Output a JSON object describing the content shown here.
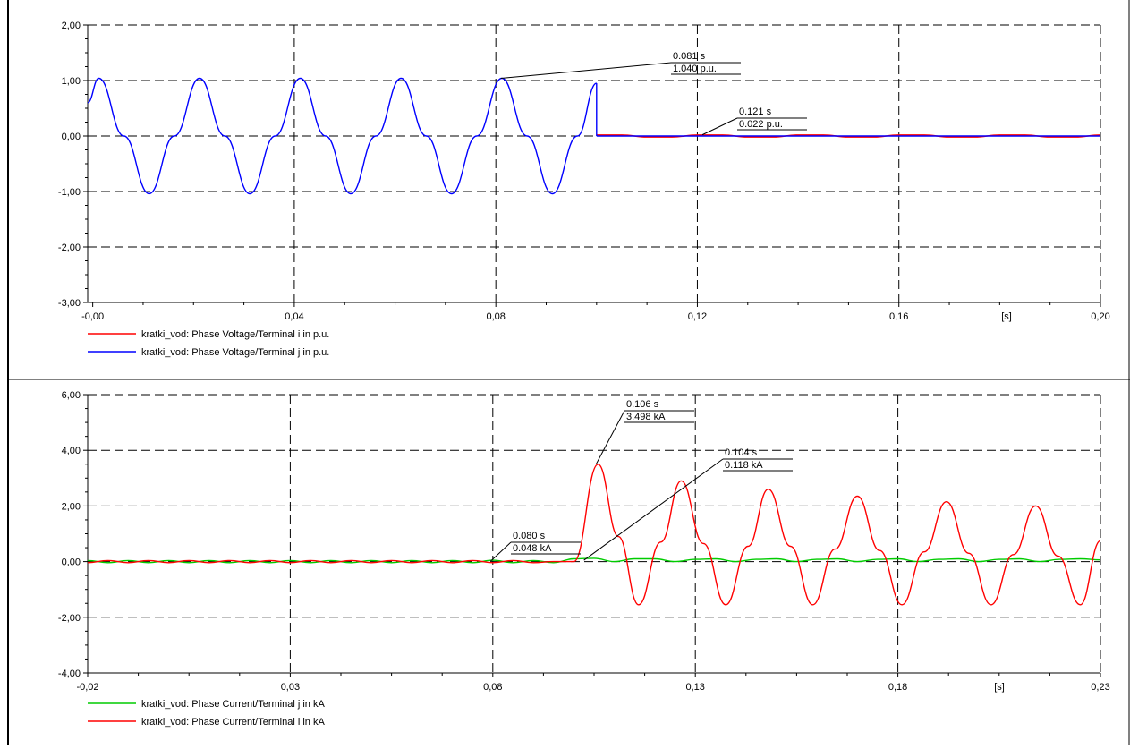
{
  "chart_data": [
    {
      "type": "line",
      "x_ticks": [
        "-0,00",
        "0,04",
        "0,08",
        "0,12",
        "0,16",
        "0,20"
      ],
      "x_tick_values": [
        0.0,
        0.04,
        0.08,
        0.12,
        0.16,
        0.2
      ],
      "xlim": [
        -0.001,
        0.2
      ],
      "x_unit": "[s]",
      "y_ticks": [
        "2,00",
        "1,00",
        "0,00",
        "-1,00",
        "-2,00",
        "-3,00"
      ],
      "y_tick_values": [
        2,
        1,
        0,
        -1,
        -2,
        -3
      ],
      "ylim": [
        -3,
        2
      ],
      "grid": true,
      "series": [
        {
          "name": "kratki_vod: Phase Voltage/Terminal i in p.u.",
          "color": "#ff0000",
          "segments": [
            {
              "x": [
                0.1,
                0.105,
                0.11,
                0.115,
                0.12,
                0.125,
                0.13,
                0.135,
                0.14,
                0.145,
                0.15,
                0.155,
                0.16,
                0.165,
                0.17,
                0.175,
                0.18,
                0.185,
                0.19,
                0.195,
                0.2
              ],
              "y": [
                0.02,
                0.02,
                -0.02,
                -0.02,
                0.02,
                0.02,
                -0.02,
                -0.02,
                0.02,
                0.02,
                -0.02,
                -0.02,
                0.02,
                0.02,
                -0.02,
                -0.02,
                0.02,
                0.02,
                -0.02,
                -0.02,
                0.02
              ]
            }
          ]
        },
        {
          "name": "kratki_vod: Phase Voltage/Terminal j in p.u.",
          "color": "#0000ff",
          "segments": [
            {
              "x": [
                -0.001,
                0.0012,
                0.0062,
                0.0112,
                0.0162,
                0.0212,
                0.0262,
                0.0312,
                0.0362,
                0.0412,
                0.0462,
                0.0512,
                0.0562,
                0.0612,
                0.0662,
                0.0712,
                0.0762,
                0.0812,
                0.0862,
                0.0912,
                0.0962,
                0.1
              ],
              "y": [
                0.6,
                1.04,
                0.0,
                -1.04,
                0.0,
                1.04,
                0.0,
                -1.04,
                0.0,
                1.04,
                0.0,
                -1.04,
                0.0,
                1.04,
                0.0,
                -1.04,
                0.0,
                1.04,
                0.0,
                -1.04,
                0.0,
                0.95
              ]
            },
            {
              "x": [
                0.1,
                0.1
              ],
              "y": [
                0.95,
                0.0
              ]
            },
            {
              "x": [
                0.1,
                0.2
              ],
              "y": [
                0.0,
                0.0
              ]
            }
          ]
        }
      ],
      "annotations": [
        {
          "time": "0.081 s",
          "value": "1.040 p.u.",
          "point": [
            0.081,
            1.04
          ]
        },
        {
          "time": "0.121 s",
          "value": "0.022 p.u.",
          "point": [
            0.121,
            0.022
          ]
        }
      ]
    },
    {
      "type": "line",
      "x_ticks": [
        "-0,02",
        "0,03",
        "0,08",
        "0,13",
        "0,18",
        "0,23"
      ],
      "x_tick_values": [
        -0.02,
        0.03,
        0.08,
        0.13,
        0.18,
        0.23
      ],
      "xlim": [
        -0.02,
        0.23
      ],
      "x_unit": "[s]",
      "y_ticks": [
        "6,00",
        "4,00",
        "2,00",
        "0,00",
        "-2,00",
        "-4,00"
      ],
      "y_tick_values": [
        6,
        4,
        2,
        0,
        -2,
        -4
      ],
      "ylim": [
        -4,
        6
      ],
      "grid": true,
      "series": [
        {
          "name": "kratki_vod: Phase Current/Terminal j in kA",
          "color": "#00cc00",
          "segments": [
            {
              "x": [
                -0.02,
                -0.015,
                -0.01,
                -0.005,
                0.0,
                0.005,
                0.01,
                0.015,
                0.02,
                0.025,
                0.03,
                0.035,
                0.04,
                0.045,
                0.05,
                0.055,
                0.06,
                0.065,
                0.07,
                0.075,
                0.08,
                0.085,
                0.09,
                0.095,
                0.1,
                0.105,
                0.11,
                0.115,
                0.12,
                0.125,
                0.13,
                0.135,
                0.14,
                0.145,
                0.15,
                0.155,
                0.16,
                0.165,
                0.17,
                0.175,
                0.18,
                0.185,
                0.19,
                0.195,
                0.2,
                0.205,
                0.21,
                0.215,
                0.22,
                0.225,
                0.23
              ],
              "y": [
                0.04,
                -0.04,
                0.04,
                -0.04,
                0.04,
                -0.04,
                0.04,
                -0.04,
                0.04,
                -0.04,
                0.04,
                -0.04,
                0.04,
                -0.04,
                0.04,
                -0.04,
                0.04,
                -0.04,
                0.04,
                -0.04,
                0.048,
                -0.04,
                0.04,
                -0.04,
                0.1,
                0.12,
                0.0,
                0.1,
                0.1,
                0.0,
                0.08,
                0.1,
                0.0,
                0.08,
                0.1,
                0.0,
                0.08,
                0.1,
                0.0,
                0.08,
                0.1,
                0.0,
                0.08,
                0.1,
                0.0,
                0.08,
                0.1,
                0.0,
                0.08,
                0.1,
                0.06
              ]
            }
          ]
        },
        {
          "name": "kratki_vod: Phase Current/Terminal i in kA",
          "color": "#ff0000",
          "segments": [
            {
              "x": [
                -0.02,
                -0.015,
                -0.01,
                -0.005,
                0.0,
                0.005,
                0.01,
                0.015,
                0.02,
                0.025,
                0.03,
                0.035,
                0.04,
                0.045,
                0.05,
                0.055,
                0.06,
                0.065,
                0.07,
                0.075,
                0.08,
                0.085,
                0.09,
                0.095,
                0.1,
                0.106,
                0.111,
                0.116,
                0.1215,
                0.1265,
                0.132,
                0.1375,
                0.143,
                0.148,
                0.1535,
                0.159,
                0.1645,
                0.17,
                0.1755,
                0.181,
                0.1865,
                0.192,
                0.1975,
                0.203,
                0.2085,
                0.214,
                0.2195,
                0.225,
                0.23
              ],
              "y": [
                -0.04,
                0.04,
                -0.04,
                0.04,
                -0.04,
                0.04,
                -0.04,
                0.04,
                -0.04,
                0.04,
                -0.04,
                0.04,
                -0.04,
                0.04,
                -0.04,
                0.04,
                -0.04,
                0.04,
                -0.04,
                0.04,
                -0.04,
                0.04,
                -0.04,
                0.0,
                0.0,
                3.498,
                0.9,
                -1.55,
                0.7,
                2.9,
                0.65,
                -1.55,
                0.55,
                2.6,
                0.55,
                -1.55,
                0.45,
                2.35,
                0.4,
                -1.55,
                0.35,
                2.15,
                0.3,
                -1.55,
                0.25,
                2.0,
                0.2,
                -1.55,
                0.75
              ]
            }
          ]
        }
      ],
      "annotations": [
        {
          "time": "0.106 s",
          "value": "3.498 kA",
          "point": [
            0.1055,
            3.5
          ]
        },
        {
          "time": "0.104 s",
          "value": "0.118 kA",
          "point": [
            0.1025,
            0.05
          ]
        },
        {
          "time": "0.080 s",
          "value": "0.048 kA",
          "point": [
            0.0795,
            0.02
          ]
        }
      ]
    }
  ]
}
